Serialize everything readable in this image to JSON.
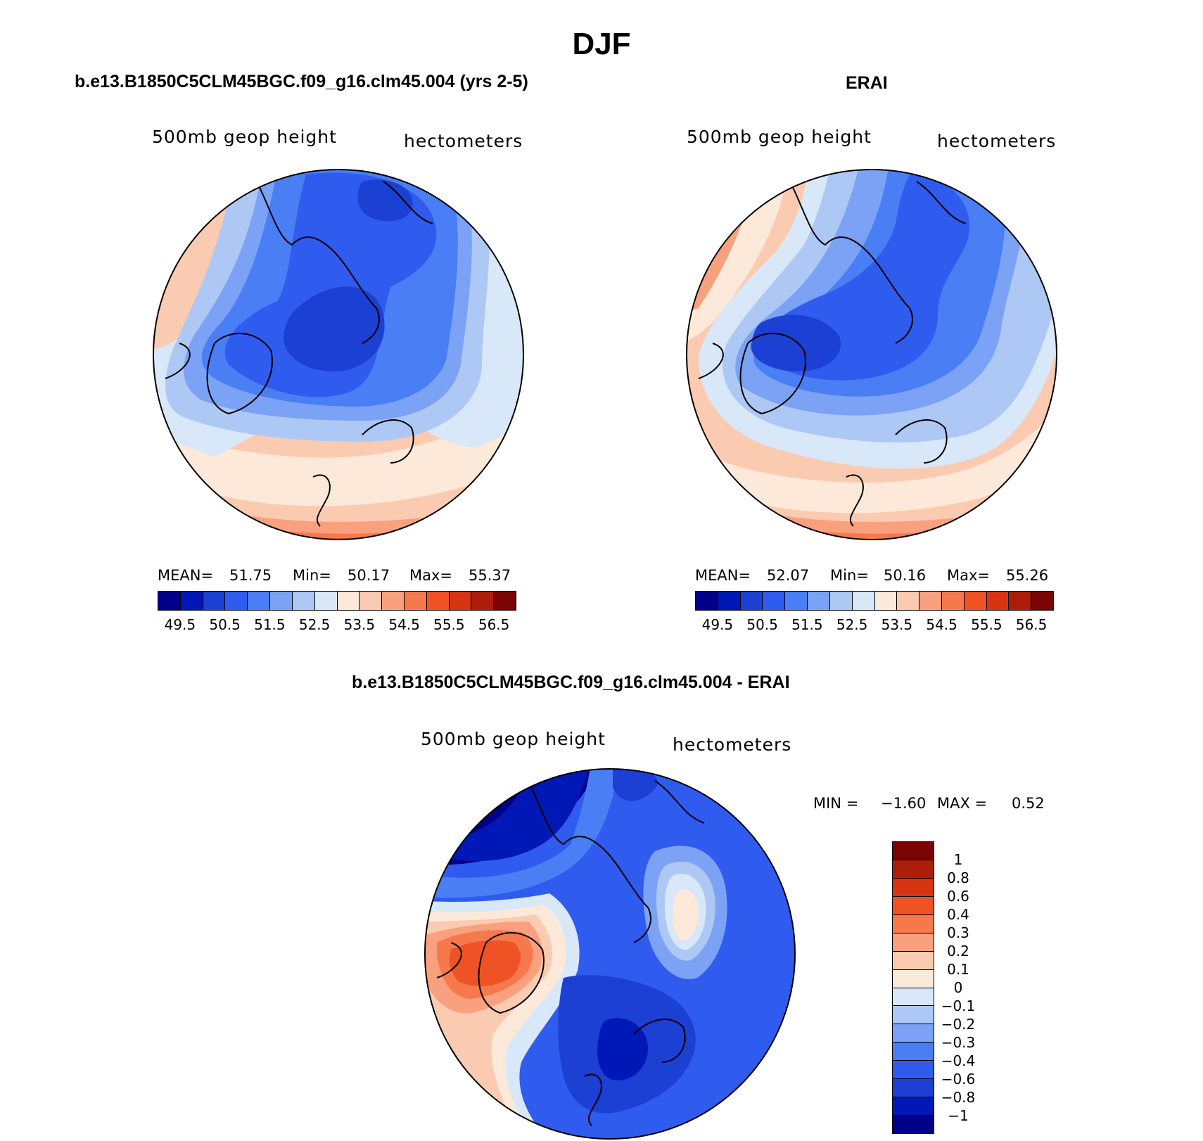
{
  "figure_title": "DJF",
  "panels": {
    "model": {
      "title": "b.e13.B1850C5CLM45BGC.f09_g16.clm45.004 (yrs 2-5)",
      "variable": "500mb geop height",
      "units": "hectometers",
      "stats": {
        "mean_label": "MEAN=",
        "mean": "51.75",
        "min_label": "Min=",
        "min": "50.17",
        "max_label": "Max=",
        "max": "55.37"
      }
    },
    "obs": {
      "title": "ERAI",
      "variable": "500mb geop height",
      "units": "hectometers",
      "stats": {
        "mean_label": "MEAN=",
        "mean": "52.07",
        "min_label": "Min=",
        "min": "50.16",
        "max_label": "Max=",
        "max": "55.26"
      }
    },
    "diff": {
      "title": "b.e13.B1850C5CLM45BGC.f09_g16.clm45.004 - ERAI",
      "variable": "500mb geop height",
      "units": "hectometers",
      "stats": {
        "min_label": "MIN =",
        "min": "−1.60",
        "max_label": "MAX =",
        "max": "0.52"
      }
    }
  },
  "colorbars": {
    "abs_colors": [
      "#00008a",
      "#0018b5",
      "#1c3fd4",
      "#2f5bef",
      "#4a7ef5",
      "#7ba2f5",
      "#aec8f5",
      "#d8e8f8",
      "#fde9d9",
      "#fbcbb1",
      "#f9a07e",
      "#f6794e",
      "#ef5325",
      "#d83414",
      "#ad1d0a",
      "#7a0403"
    ],
    "abs_ticks": [
      "49.5",
      "50.5",
      "51.5",
      "52.5",
      "53.5",
      "54.5",
      "55.5",
      "56.5"
    ],
    "diff_colors": [
      "#7a0403",
      "#ad1d0a",
      "#d83414",
      "#ef5325",
      "#f6794e",
      "#f9a07e",
      "#fbcbb1",
      "#fde9d9",
      "#d8e8f8",
      "#aec8f5",
      "#7ba2f5",
      "#4a7ef5",
      "#2f5bef",
      "#1c3fd4",
      "#0018b5",
      "#00008a"
    ],
    "diff_ticks": [
      "1",
      "0.8",
      "0.6",
      "0.4",
      "0.3",
      "0.2",
      "0.1",
      "0",
      "−0.1",
      "−0.2",
      "−0.3",
      "−0.4",
      "−0.6",
      "−0.8",
      "−1"
    ]
  }
}
